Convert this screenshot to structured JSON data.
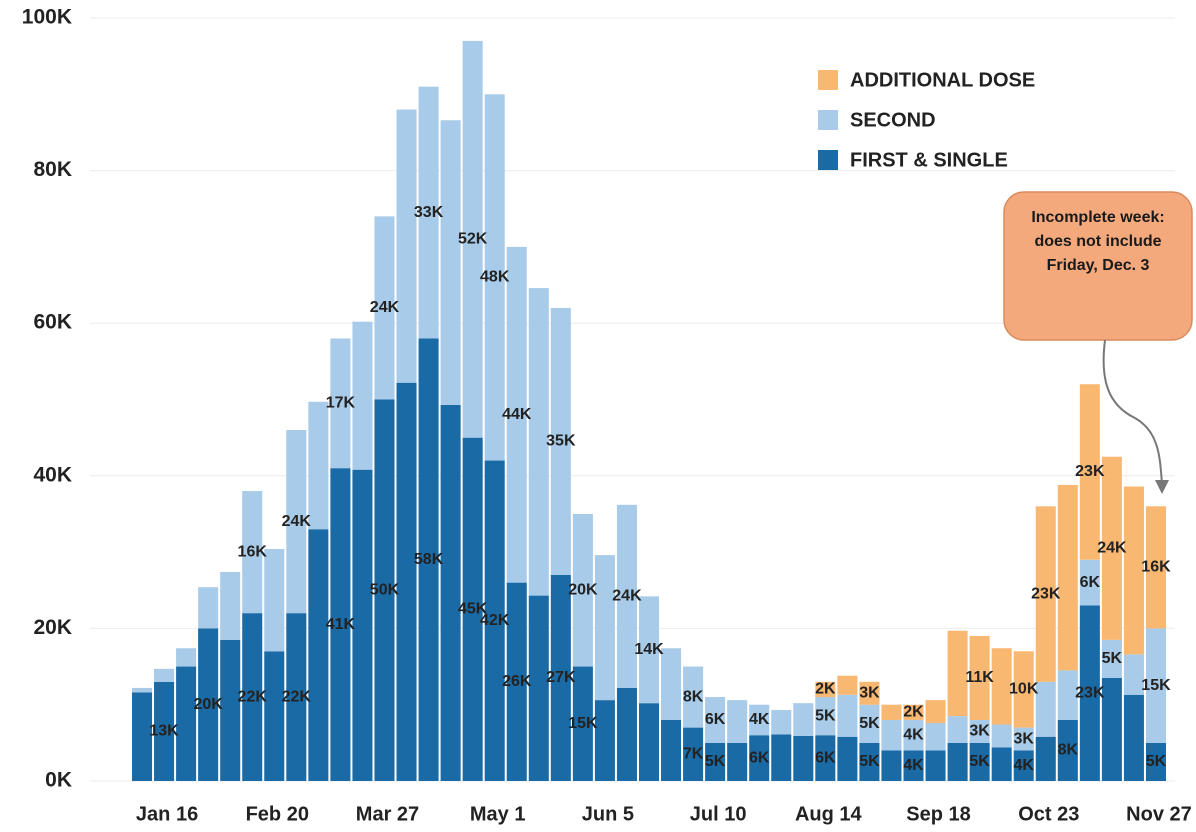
{
  "chart_data": {
    "type": "stacked_bar",
    "annotation": "Incomplete week: does not include Friday, Dec. 3",
    "categories": [
      null,
      "Jan 16",
      null,
      null,
      null,
      null,
      "Feb 20",
      null,
      null,
      null,
      null,
      "Mar 27",
      null,
      null,
      null,
      null,
      "May 1",
      null,
      null,
      null,
      null,
      "Jun 5",
      null,
      null,
      null,
      null,
      "Jul 10",
      null,
      null,
      null,
      null,
      "Aug 14",
      null,
      null,
      null,
      null,
      "Sep 18",
      null,
      null,
      null,
      null,
      "Oct 23",
      null,
      null,
      null,
      null,
      "Nov 27"
    ],
    "series": [
      {
        "name": "FIRST & SINGLE",
        "color": "#1a6aa6",
        "values": [
          11.6,
          13,
          15,
          20,
          18.5,
          22,
          17,
          22,
          33,
          41,
          40.8,
          50,
          52.2,
          58,
          49.3,
          45,
          42,
          26,
          24.3,
          27,
          15,
          10.6,
          12.2,
          10.2,
          8,
          7,
          5,
          5,
          6,
          6.1,
          5.9,
          6,
          5.8,
          5,
          4,
          4,
          4,
          5,
          5,
          4.4,
          4,
          5.8,
          8,
          23,
          13.5,
          11.3,
          5
        ],
        "value_labels": [
          null,
          "13K",
          null,
          "20K",
          null,
          "22K",
          null,
          "22K",
          null,
          "41K",
          null,
          "50K",
          null,
          "58K",
          null,
          "45K",
          "42K",
          "26K",
          null,
          "27K",
          "15K",
          null,
          null,
          null,
          null,
          "7K",
          "5K",
          null,
          "6K",
          null,
          null,
          "6K",
          null,
          "5K",
          null,
          "4K",
          null,
          null,
          "5K",
          null,
          "4K",
          null,
          "8K",
          "23K",
          null,
          null,
          "5K"
        ]
      },
      {
        "name": "SECOND",
        "color": "#a7cbe8",
        "values": [
          0.6,
          1.7,
          2.4,
          5.4,
          8.9,
          16,
          13.4,
          24,
          16.7,
          17,
          19.4,
          24,
          35.8,
          33,
          37.3,
          52,
          48,
          44,
          40.3,
          35,
          20,
          19,
          24,
          14,
          9.4,
          8,
          6,
          5.6,
          4,
          3.2,
          4.3,
          5,
          5.5,
          5,
          4,
          4,
          3.6,
          3.5,
          3,
          3,
          3,
          7.2,
          6.5,
          6,
          5,
          5.3,
          15
        ],
        "value_labels": [
          null,
          null,
          null,
          null,
          null,
          "16K",
          null,
          "24K",
          null,
          "17K",
          null,
          "24K",
          null,
          "33K",
          null,
          "52K",
          "48K",
          "44K",
          null,
          "35K",
          "20K",
          null,
          "24K",
          "14K",
          null,
          "8K",
          "6K",
          null,
          "4K",
          null,
          null,
          "5K",
          null,
          "5K",
          null,
          "4K",
          null,
          null,
          "3K",
          null,
          "3K",
          null,
          null,
          "6K",
          "5K",
          null,
          "15K"
        ]
      },
      {
        "name": "ADDITIONAL DOSE",
        "color": "#f9b872",
        "values": [
          null,
          null,
          null,
          null,
          null,
          null,
          null,
          null,
          null,
          null,
          null,
          null,
          null,
          null,
          null,
          null,
          null,
          null,
          null,
          null,
          null,
          null,
          null,
          null,
          null,
          null,
          null,
          null,
          null,
          null,
          null,
          2,
          2.5,
          3,
          2,
          2,
          3,
          11.2,
          11,
          10,
          10,
          23,
          24.3,
          23,
          24,
          22,
          16
        ],
        "value_labels": [
          null,
          null,
          null,
          null,
          null,
          null,
          null,
          null,
          null,
          null,
          null,
          null,
          null,
          null,
          null,
          null,
          null,
          null,
          null,
          null,
          null,
          null,
          null,
          null,
          null,
          null,
          null,
          null,
          null,
          null,
          null,
          "2K",
          null,
          "3K",
          null,
          "2K",
          null,
          null,
          "11K",
          null,
          "10K",
          "23K",
          null,
          "23K",
          "24K",
          null,
          "16K"
        ]
      }
    ],
    "ylim": [
      0,
      100
    ],
    "yticks": [
      {
        "value": 0,
        "label": "0K"
      },
      {
        "value": 20,
        "label": "20K"
      },
      {
        "value": 40,
        "label": "40K"
      },
      {
        "value": 60,
        "label": "60K"
      },
      {
        "value": 80,
        "label": "80K"
      },
      {
        "value": 100,
        "label": "100K"
      }
    ],
    "grid": true,
    "legend": "top-right"
  }
}
